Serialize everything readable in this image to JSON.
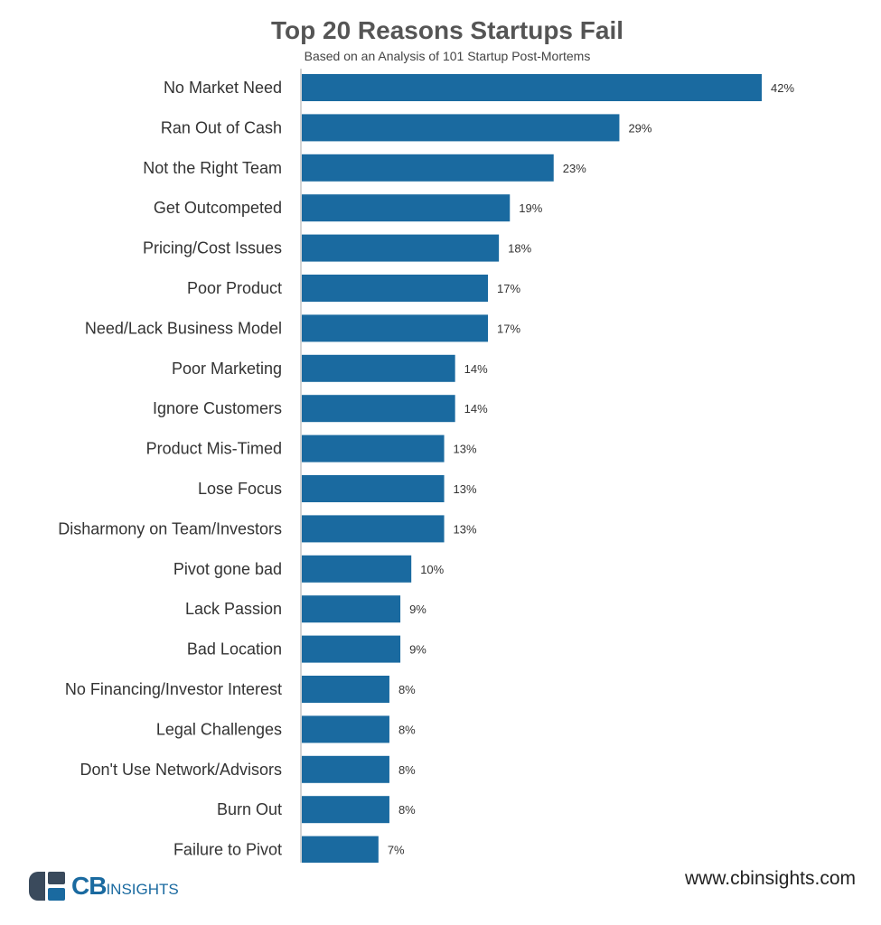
{
  "brand": {
    "bar_color": "#1a6aa0",
    "axis_color": "#aaaaaa",
    "logo_dark": "#3a4a5c",
    "logo_blue": "#1a6aa0",
    "logo_text_bold": "CB",
    "logo_text_rest": "INSIGHTS"
  },
  "footer": {
    "website": "www.cbinsights.com"
  },
  "chart_data": {
    "type": "bar",
    "orientation": "horizontal",
    "title": "Top 20 Reasons Startups Fail",
    "subtitle": "Based on an Analysis of 101 Startup Post-Mortems",
    "xlim": [
      0,
      42
    ],
    "categories": [
      "No Market Need",
      "Ran Out of Cash",
      "Not the Right Team",
      "Get Outcompeted",
      "Pricing/Cost Issues",
      "Poor Product",
      "Need/Lack Business Model",
      "Poor Marketing",
      "Ignore Customers",
      "Product Mis-Timed",
      "Lose Focus",
      "Disharmony on Team/Investors",
      "Pivot gone bad",
      "Lack Passion",
      "Bad Location",
      "No Financing/Investor Interest",
      "Legal Challenges",
      "Don't Use Network/Advisors",
      "Burn Out",
      "Failure to Pivot"
    ],
    "values": [
      42,
      29,
      23,
      19,
      18,
      17,
      17,
      14,
      14,
      13,
      13,
      13,
      10,
      9,
      9,
      8,
      8,
      8,
      8,
      7
    ],
    "value_labels": [
      "42%",
      "29%",
      "23%",
      "19%",
      "18%",
      "17%",
      "17%",
      "14%",
      "14%",
      "13%",
      "13%",
      "13%",
      "10%",
      "9%",
      "9%",
      "8%",
      "8%",
      "8%",
      "8%",
      "7%"
    ],
    "grid": false,
    "legend": "none"
  }
}
